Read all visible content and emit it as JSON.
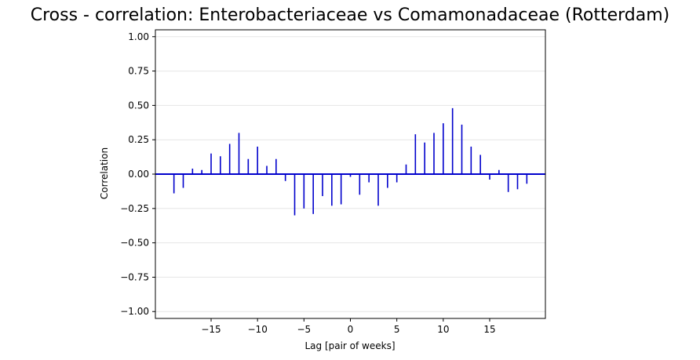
{
  "chart_data": {
    "type": "bar",
    "title": "Cross - correlation: Enterobacteriaceae vs Comamonadaceae (Rotterdam)",
    "xlabel": "Lag [pair of weeks]",
    "ylabel": "Correlation",
    "xlim": [
      -21,
      21
    ],
    "ylim": [
      -1.05,
      1.05
    ],
    "xticks": [
      -15,
      -10,
      -5,
      0,
      5,
      10,
      15
    ],
    "xtick_labels": [
      "−15",
      "−10",
      "−5",
      "0",
      "5",
      "10",
      "15"
    ],
    "yticks": [
      -1.0,
      -0.75,
      -0.5,
      -0.25,
      0.0,
      0.25,
      0.5,
      0.75,
      1.0
    ],
    "ytick_labels": [
      "−1.00",
      "−0.75",
      "−0.50",
      "−0.25",
      "0.00",
      "0.25",
      "0.50",
      "0.75",
      "1.00"
    ],
    "grid": "horizontal",
    "color": "#0000cc",
    "x": [
      -19,
      -18,
      -17,
      -16,
      -15,
      -14,
      -13,
      -12,
      -11,
      -10,
      -9,
      -8,
      -7,
      -6,
      -5,
      -4,
      -3,
      -2,
      -1,
      0,
      1,
      2,
      3,
      4,
      5,
      6,
      7,
      8,
      9,
      10,
      11,
      12,
      13,
      14,
      15,
      16,
      17,
      18,
      19
    ],
    "values": [
      -0.14,
      -0.1,
      0.04,
      0.03,
      0.15,
      0.13,
      0.22,
      0.3,
      0.11,
      0.2,
      0.06,
      0.11,
      -0.05,
      -0.3,
      -0.25,
      -0.29,
      -0.16,
      -0.23,
      -0.22,
      -0.02,
      -0.15,
      -0.06,
      -0.23,
      -0.1,
      -0.06,
      0.07,
      0.29,
      0.23,
      0.3,
      0.37,
      0.48,
      0.36,
      0.2,
      0.14,
      -0.04,
      0.03,
      -0.13,
      -0.11,
      -0.07
    ]
  }
}
